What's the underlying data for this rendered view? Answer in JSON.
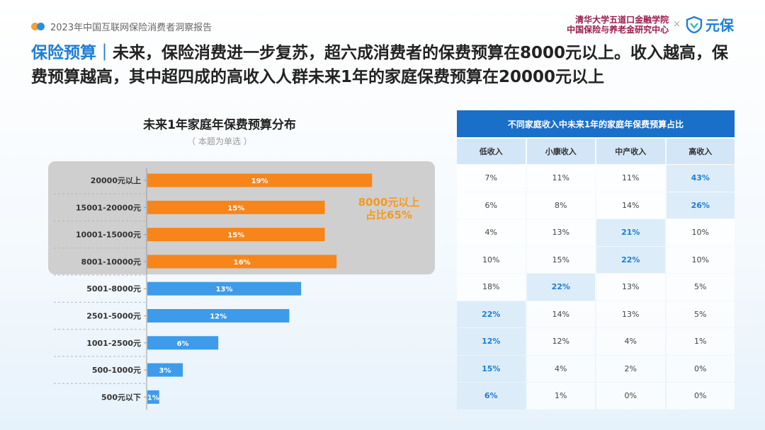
{
  "header": {
    "report_name": "2023年中国互联网保险消费者洞察报告",
    "institution_line1": "清华大学五道口金融学院",
    "institution_line2": "中国保险与养老金研究中心",
    "times": "×",
    "brand": "元保"
  },
  "headline": {
    "keyword": "保险预算",
    "separator": "｜",
    "text": "未来，保险消费进一步复苏，超六成消费者的保费预算在8000元以上。收入越高，保费预算越高，其中超四成的高收入人群未来1年的家庭保费预算在20000元以上"
  },
  "chart_data": {
    "type": "bar",
    "orientation": "horizontal",
    "title": "未来1年家庭年保费预算分布",
    "subtitle": "（ 本题为单选 ）",
    "categories": [
      "20000元以上",
      "15001-20000元",
      "10001-15000元",
      "8001-10000元",
      "5001-8000元",
      "2501-5000元",
      "1001-2500元",
      "500-1000元",
      "500元以下"
    ],
    "values": [
      19,
      15,
      15,
      16,
      13,
      12,
      6,
      3,
      1
    ],
    "labels": [
      "19%",
      "15%",
      "15%",
      "16%",
      "13%",
      "12%",
      "6%",
      "3%",
      "1%"
    ],
    "highlighted_count": 4,
    "colors": {
      "highlight": "#f7851a",
      "normal": "#3d9bea",
      "box": "#cfcfcf"
    },
    "annotation": [
      "8000元以上",
      "占比65%"
    ]
  },
  "table": {
    "title": "不同家庭收入中未来1年的家庭年保费预算占比",
    "headers": [
      "低收入",
      "小康收入",
      "中产收入",
      "高收入"
    ],
    "rows": [
      [
        {
          "v": "7%"
        },
        {
          "v": "11%"
        },
        {
          "v": "11%"
        },
        {
          "v": "43%",
          "hl": true
        }
      ],
      [
        {
          "v": "6%"
        },
        {
          "v": "8%"
        },
        {
          "v": "14%"
        },
        {
          "v": "26%",
          "hl": true
        }
      ],
      [
        {
          "v": "4%"
        },
        {
          "v": "13%"
        },
        {
          "v": "21%",
          "hl": true
        },
        {
          "v": "10%"
        }
      ],
      [
        {
          "v": "10%"
        },
        {
          "v": "15%"
        },
        {
          "v": "22%",
          "hl": true
        },
        {
          "v": "10%"
        }
      ],
      [
        {
          "v": "18%"
        },
        {
          "v": "22%",
          "hl": true
        },
        {
          "v": "13%"
        },
        {
          "v": "5%"
        }
      ],
      [
        {
          "v": "22%",
          "hl": true
        },
        {
          "v": "14%"
        },
        {
          "v": "13%"
        },
        {
          "v": "5%"
        }
      ],
      [
        {
          "v": "12%",
          "hl": true
        },
        {
          "v": "12%"
        },
        {
          "v": "4%"
        },
        {
          "v": "1%"
        }
      ],
      [
        {
          "v": "15%",
          "hl": true
        },
        {
          "v": "4%"
        },
        {
          "v": "2%"
        },
        {
          "v": "0%"
        }
      ],
      [
        {
          "v": "6%",
          "hl": true
        },
        {
          "v": "1%"
        },
        {
          "v": "0%"
        },
        {
          "v": "0%"
        }
      ]
    ]
  }
}
